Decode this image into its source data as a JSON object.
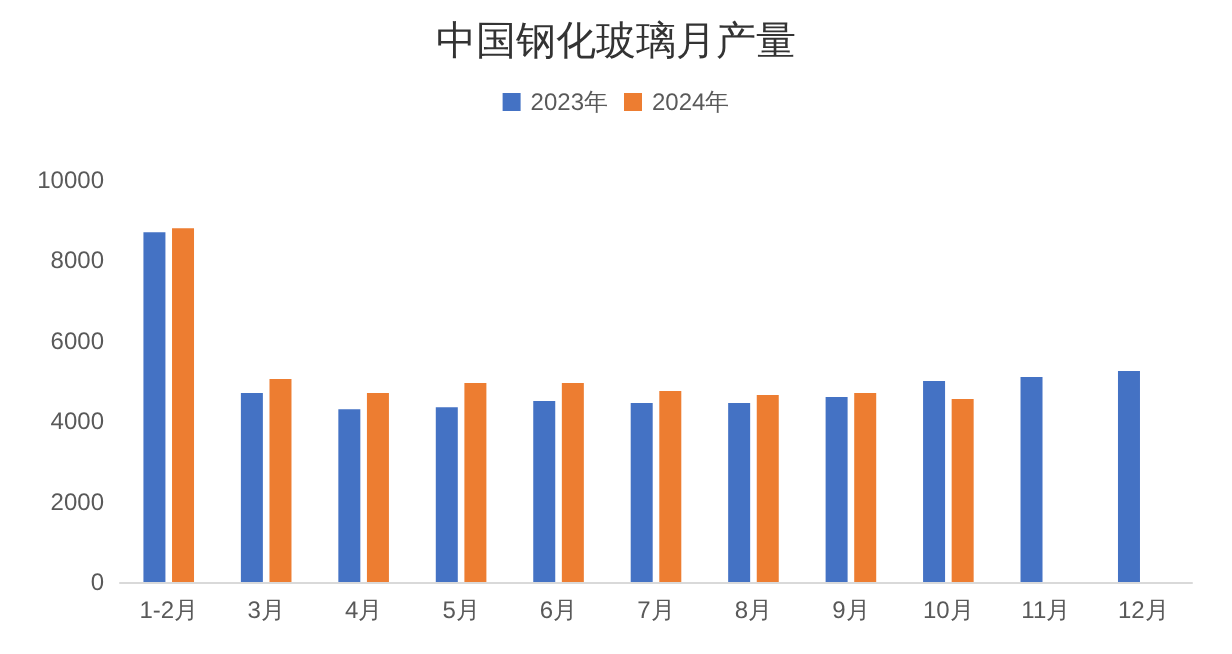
{
  "chart_data": {
    "type": "bar",
    "title": "中国钢化玻璃月产量",
    "categories": [
      "1-2月",
      "3月",
      "4月",
      "5月",
      "6月",
      "7月",
      "8月",
      "9月",
      "10月",
      "11月",
      "12月"
    ],
    "series": [
      {
        "name": "2023年",
        "color": "#4472c4",
        "values": [
          8700,
          4700,
          4300,
          4350,
          4500,
          4450,
          4450,
          4600,
          5000,
          5100,
          5250
        ]
      },
      {
        "name": "2024年",
        "color": "#ed7d31",
        "values": [
          8800,
          5050,
          4700,
          4950,
          4950,
          4750,
          4650,
          4700,
          4550,
          null,
          null
        ]
      }
    ],
    "ylim": [
      0,
      10000
    ],
    "yticks": [
      0,
      2000,
      4000,
      6000,
      8000,
      10000
    ],
    "grid": false,
    "legend": "top"
  }
}
